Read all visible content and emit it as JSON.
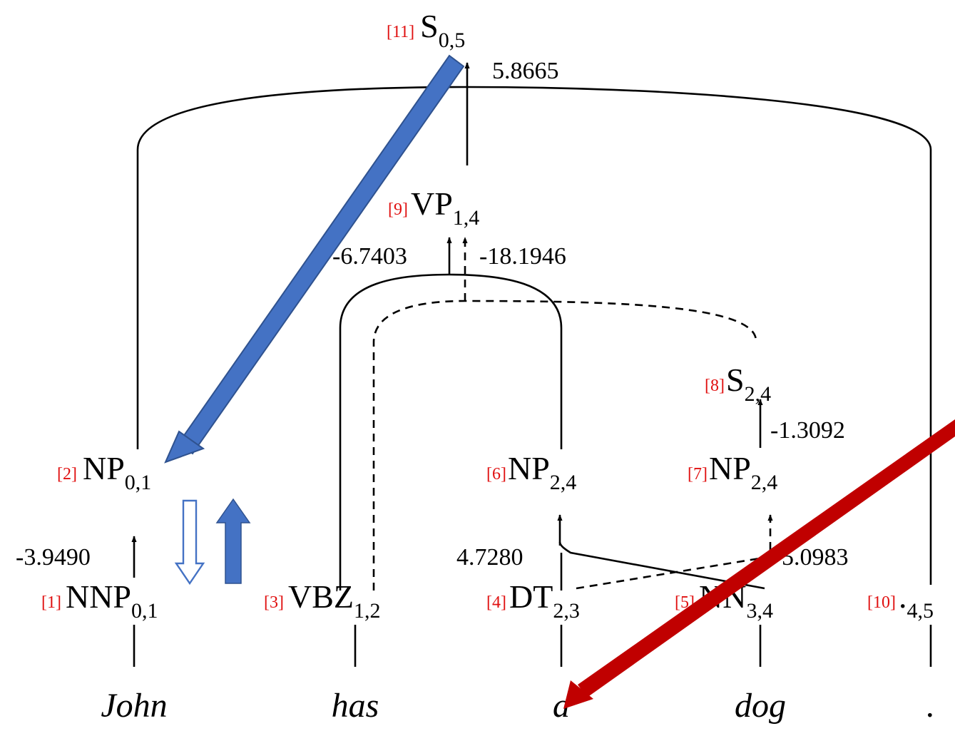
{
  "nodes": {
    "s05": {
      "idx": "[11]",
      "cat": "S",
      "span": "0,5"
    },
    "vp14": {
      "idx": "[9]",
      "cat": "VP",
      "span": "1,4"
    },
    "s24": {
      "idx": "[8]",
      "cat": "S",
      "span": "2,4"
    },
    "np01": {
      "idx": "[2]",
      "cat": "NP",
      "span": "0,1"
    },
    "np24a": {
      "idx": "[6]",
      "cat": "NP",
      "span": "2,4"
    },
    "np24b": {
      "idx": "[7]",
      "cat": "NP",
      "span": "2,4"
    },
    "nnp01": {
      "idx": "[1]",
      "cat": "NNP",
      "span": "0,1"
    },
    "vbz12": {
      "idx": "[3]",
      "cat": "VBZ",
      "span": "1,2"
    },
    "dt23": {
      "idx": "[4]",
      "cat": "DT",
      "span": "2,3"
    },
    "nn34": {
      "idx": "[5]",
      "cat": "NN",
      "span": "3,4"
    },
    "pun45": {
      "idx": "[10]",
      "cat": ".",
      "span": "4,5"
    }
  },
  "scores": {
    "s05": "5.8665",
    "vp_solid": "-6.7403",
    "vp_dashed": "-18.1946",
    "s24": "-1.3092",
    "np01": "-3.9490",
    "np24a": "4.7280",
    "np24b": "5.0983"
  },
  "words": [
    "John",
    "has",
    "a",
    "dog",
    "."
  ],
  "colors": {
    "index": "#e01010",
    "blue_arrow": "#4472c4",
    "blue_arrow_border": "#2f528f",
    "red_arrow": "#c00000"
  }
}
